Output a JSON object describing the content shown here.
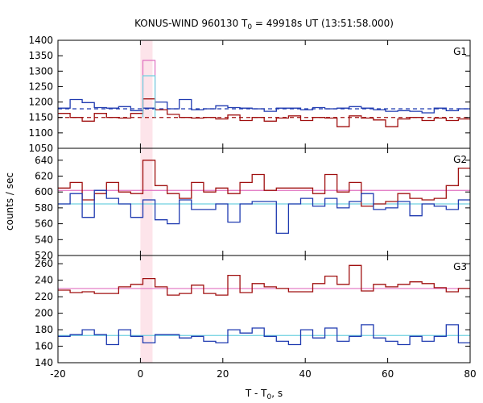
{
  "chart_data": {
    "type": "line",
    "title": "KONUS-WIND 960130 T",
    "title_sub": "0",
    "title_rest": " = 49918s UT (13:51:58.000)",
    "xlabel": "T - T",
    "xlabel_sub": "0",
    "xlabel_rest": ", s",
    "ylabel": "counts / sec",
    "xlim": [
      -20,
      80
    ],
    "x_ticks": [
      -20,
      0,
      20,
      40,
      60,
      80
    ],
    "highlight_band": {
      "x0": 0,
      "x1": 2.944,
      "color": "#fde4ea"
    },
    "bin_edges": [
      -20,
      -17.056,
      -14.112,
      -11.168,
      -8.224,
      -5.28,
      -2.336,
      0.608,
      3.552,
      6.496,
      9.44,
      12.384,
      15.328,
      18.272,
      21.216,
      24.16,
      27.104,
      30.048,
      32.992,
      35.936,
      38.88,
      41.824,
      44.768,
      47.712,
      50.656,
      53.6,
      56.544,
      59.488,
      62.432,
      65.376,
      68.32,
      71.264,
      74.208,
      77.152,
      80
    ],
    "panels": [
      {
        "label": "G1",
        "ylim": [
          1050,
          1400
        ],
        "y_ticks": [
          1050,
          1100,
          1150,
          1200,
          1250,
          1300,
          1350,
          1400
        ],
        "series": [
          {
            "color": "#1f3ab0",
            "values": [
              1180,
              1208,
              1198,
              1182,
              1180,
              1185,
              1172,
              1180,
              1200,
              1178,
              1208,
              1175,
              1178,
              1188,
              1182,
              1180,
              1178,
              1170,
              1180,
              1180,
              1175,
              1182,
              1178,
              1180,
              1185,
              1180,
              1175,
              1170,
              1172,
              1170,
              1165,
              1180,
              1172,
              1178
            ]
          },
          {
            "color": "#a01010",
            "values": [
              1163,
              1150,
              1138,
              1163,
              1150,
              1148,
              1163,
              1210,
              1175,
              1160,
              1150,
              1148,
              1150,
              1145,
              1158,
              1140,
              1150,
              1138,
              1148,
              1155,
              1140,
              1150,
              1148,
              1120,
              1155,
              1148,
              1142,
              1120,
              1145,
              1150,
              1140,
              1148,
              1140,
              1145
            ]
          }
        ],
        "fits": [
          {
            "color": "#1f3ab0",
            "value": 1178,
            "dashed": true
          },
          {
            "color": "#a01010",
            "value": 1150,
            "dashed": true
          }
        ],
        "peaks": [
          {
            "color": "#e070c0",
            "x0": 0.608,
            "x1": 3.552,
            "value": 1335
          },
          {
            "color": "#6fd0e0",
            "x0": 0.608,
            "x1": 3.552,
            "value": 1285
          }
        ]
      },
      {
        "label": "G2",
        "ylim": [
          520,
          655
        ],
        "y_ticks": [
          520,
          540,
          560,
          580,
          600,
          620,
          640
        ],
        "series": [
          {
            "color": "#a01010",
            "values": [
              605,
              612,
              590,
              598,
              612,
              600,
              598,
              640,
              608,
              598,
              592,
              612,
              600,
              605,
              598,
              612,
              622,
              602,
              605,
              605,
              605,
              598,
              622,
              600,
              612,
              582,
              585,
              588,
              598,
              592,
              590,
              592,
              608,
              630
            ]
          },
          {
            "color": "#1f3ab0",
            "values": [
              585,
              598,
              568,
              602,
              592,
              585,
              568,
              590,
              565,
              560,
              590,
              578,
              578,
              585,
              562,
              585,
              588,
              588,
              548,
              585,
              592,
              582,
              592,
              580,
              588,
              598,
              578,
              580,
              588,
              570,
              585,
              582,
              578,
              590
            ]
          }
        ],
        "fits": [
          {
            "color": "#e070c0",
            "value": 602,
            "dashed": false
          },
          {
            "color": "#6fd0e0",
            "value": 585,
            "dashed": false
          }
        ]
      },
      {
        "label": "G3",
        "ylim": [
          140,
          270
        ],
        "y_ticks": [
          140,
          160,
          180,
          200,
          220,
          240,
          260
        ],
        "series": [
          {
            "color": "#a01010",
            "values": [
              228,
              225,
              226,
              224,
              224,
              232,
              235,
              242,
              232,
              222,
              224,
              234,
              224,
              222,
              246,
              225,
              236,
              232,
              230,
              226,
              226,
              236,
              245,
              235,
              258,
              227,
              235,
              232,
              235,
              238,
              236,
              231,
              226,
              230
            ]
          },
          {
            "color": "#1f3ab0",
            "values": [
              172,
              174,
              180,
              174,
              162,
              180,
              172,
              164,
              174,
              174,
              170,
              172,
              166,
              164,
              180,
              176,
              182,
              172,
              166,
              162,
              180,
              170,
              182,
              166,
              172,
              186,
              170,
              166,
              162,
              172,
              166,
              172,
              186,
              164
            ]
          }
        ],
        "fits": [
          {
            "color": "#e070c0",
            "value": 230,
            "dashed": false
          },
          {
            "color": "#6fd0e0",
            "value": 173,
            "dashed": false
          }
        ]
      }
    ]
  }
}
